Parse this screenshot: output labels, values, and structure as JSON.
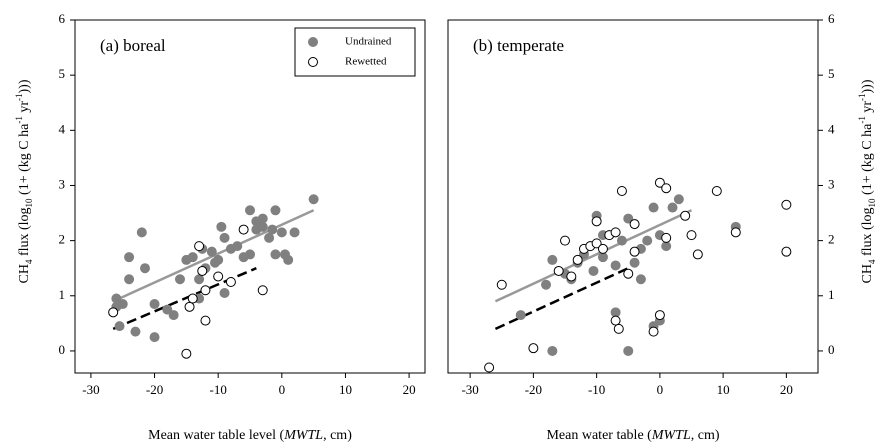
{
  "chart_data": [
    {
      "type": "scatter",
      "title": "(a) boreal",
      "xlabel": [
        "Mean water table level (",
        "MWTL",
        ", cm)"
      ],
      "xlabel_italic": [
        false,
        true,
        false
      ],
      "ylabel": [
        "CH",
        "4",
        " flux (log",
        "10",
        " (1+ (kg C ha",
        "-1",
        " yr",
        "-1",
        ")))"
      ],
      "ylabel_shift": [
        "none",
        "sub",
        "none",
        "sub",
        "none",
        "super",
        "none",
        "super",
        "none"
      ],
      "yaxis_side": "left",
      "xlim": [
        -32.5,
        22.5
      ],
      "xticks": [
        -30,
        -20,
        -10,
        0,
        10,
        20
      ],
      "ylim": [
        -0.4,
        6
      ],
      "yticks": [
        0,
        1,
        2,
        3,
        4,
        5,
        6
      ],
      "legend": "upper right",
      "series": [
        {
          "name": "Undrained",
          "fill": "#808080",
          "stroke": "#808080",
          "x": [
            -26,
            -26,
            -25.5,
            -25,
            -24,
            -24,
            -23,
            -22,
            -21.5,
            -20,
            -20,
            -18,
            -17,
            -16,
            -15,
            -14,
            -13,
            -13,
            -12.5,
            -12,
            -11,
            -10.5,
            -10,
            -9.5,
            -9,
            -9,
            -8,
            -7,
            -6,
            -5,
            -5,
            -4,
            -4,
            -3,
            -3,
            -2,
            -1.5,
            -1,
            -1,
            0,
            0.5,
            1,
            2,
            5
          ],
          "values": [
            0.8,
            0.95,
            0.45,
            0.85,
            1.7,
            1.3,
            0.35,
            2.15,
            1.5,
            0.25,
            0.85,
            0.75,
            0.65,
            1.3,
            1.65,
            1.7,
            1.3,
            0.95,
            1.85,
            1.5,
            1.8,
            1.6,
            1.65,
            2.25,
            2.05,
            1.05,
            1.85,
            1.9,
            1.7,
            1.75,
            2.55,
            2.35,
            2.2,
            2.4,
            2.25,
            2.05,
            2.2,
            1.75,
            2.55,
            2.15,
            1.75,
            1.65,
            2.15,
            2.75
          ]
        },
        {
          "name": "Rewetted",
          "fill": "#ffffff",
          "stroke": "#000000",
          "x": [
            -26.5,
            -15,
            -14.5,
            -14,
            -13,
            -12.5,
            -12,
            -12,
            -10,
            -8,
            -6,
            -3
          ],
          "values": [
            0.7,
            -0.05,
            0.8,
            0.95,
            1.9,
            1.45,
            0.55,
            1.1,
            1.35,
            1.25,
            2.2,
            1.1
          ]
        }
      ],
      "trend_lines": [
        {
          "color": "#999999",
          "dash": false,
          "x": [
            -26.5,
            5
          ],
          "values": [
            0.9,
            2.55
          ]
        },
        {
          "color": "#000000",
          "dash": true,
          "x": [
            -26.5,
            -4
          ],
          "values": [
            0.4,
            1.5
          ]
        }
      ]
    },
    {
      "type": "scatter",
      "title": "(b) temperate",
      "xlabel": [
        "Mean water table (",
        "MWTL",
        ", cm)"
      ],
      "xlabel_italic": [
        false,
        true,
        false
      ],
      "ylabel": [
        "CH",
        "4",
        " flux (log",
        "10",
        " (1+ (kg C ha",
        "-1",
        " yr",
        "-1",
        ")))"
      ],
      "ylabel_shift": [
        "none",
        "sub",
        "none",
        "sub",
        "none",
        "super",
        "none",
        "super",
        "none"
      ],
      "yaxis_side": "right",
      "xlim": [
        -33.5,
        25
      ],
      "xticks": [
        -30,
        -20,
        -10,
        0,
        10,
        20
      ],
      "ylim": [
        -0.4,
        6
      ],
      "yticks": [
        0,
        1,
        2,
        3,
        4,
        5,
        6
      ],
      "legend": "none",
      "series": [
        {
          "fill": "#808080",
          "stroke": "#808080",
          "x": [
            -22,
            -18,
            -17,
            -17,
            -15,
            -14,
            -13,
            -12,
            -11,
            -10.5,
            -10,
            -9,
            -9,
            -8,
            -7,
            -7,
            -6,
            -5,
            -5,
            -4,
            -3,
            -3,
            -2,
            -1,
            -1,
            0,
            0,
            1,
            2,
            3,
            12
          ],
          "values": [
            0.65,
            1.2,
            1.65,
            0,
            1.4,
            1.3,
            1.6,
            1.75,
            1.9,
            1.45,
            2.45,
            2.1,
            1.7,
            2.1,
            1.55,
            0.7,
            2.0,
            2.4,
            0,
            1.6,
            1.85,
            1.3,
            2.0,
            2.6,
            0.45,
            2.1,
            0.55,
            1.9,
            2.6,
            2.75,
            2.25
          ]
        },
        {
          "fill": "#ffffff",
          "stroke": "#000000",
          "x": [
            -27,
            -25,
            -20,
            -16,
            -15,
            -14,
            -13,
            -12,
            -11,
            -10,
            -10,
            -9,
            -8,
            -7,
            -7,
            -6.5,
            -6,
            -5,
            -4,
            -4,
            -1,
            0,
            0,
            1,
            1,
            4,
            5,
            6,
            9,
            12,
            20,
            20
          ],
          "values": [
            -0.3,
            1.2,
            0.05,
            1.45,
            2.0,
            1.35,
            1.65,
            1.85,
            1.9,
            1.95,
            2.35,
            1.85,
            2.1,
            2.15,
            0.55,
            0.4,
            2.9,
            1.4,
            2.3,
            1.8,
            0.35,
            0.65,
            3.05,
            2.95,
            2.05,
            2.45,
            2.1,
            1.75,
            2.9,
            2.15,
            1.8,
            2.65
          ]
        }
      ],
      "trend_lines": [
        {
          "color": "#999999",
          "dash": false,
          "x": [
            -26,
            5
          ],
          "values": [
            0.9,
            2.55
          ]
        },
        {
          "color": "#000000",
          "dash": true,
          "x": [
            -26,
            -5
          ],
          "values": [
            0.4,
            1.5
          ]
        }
      ]
    }
  ]
}
